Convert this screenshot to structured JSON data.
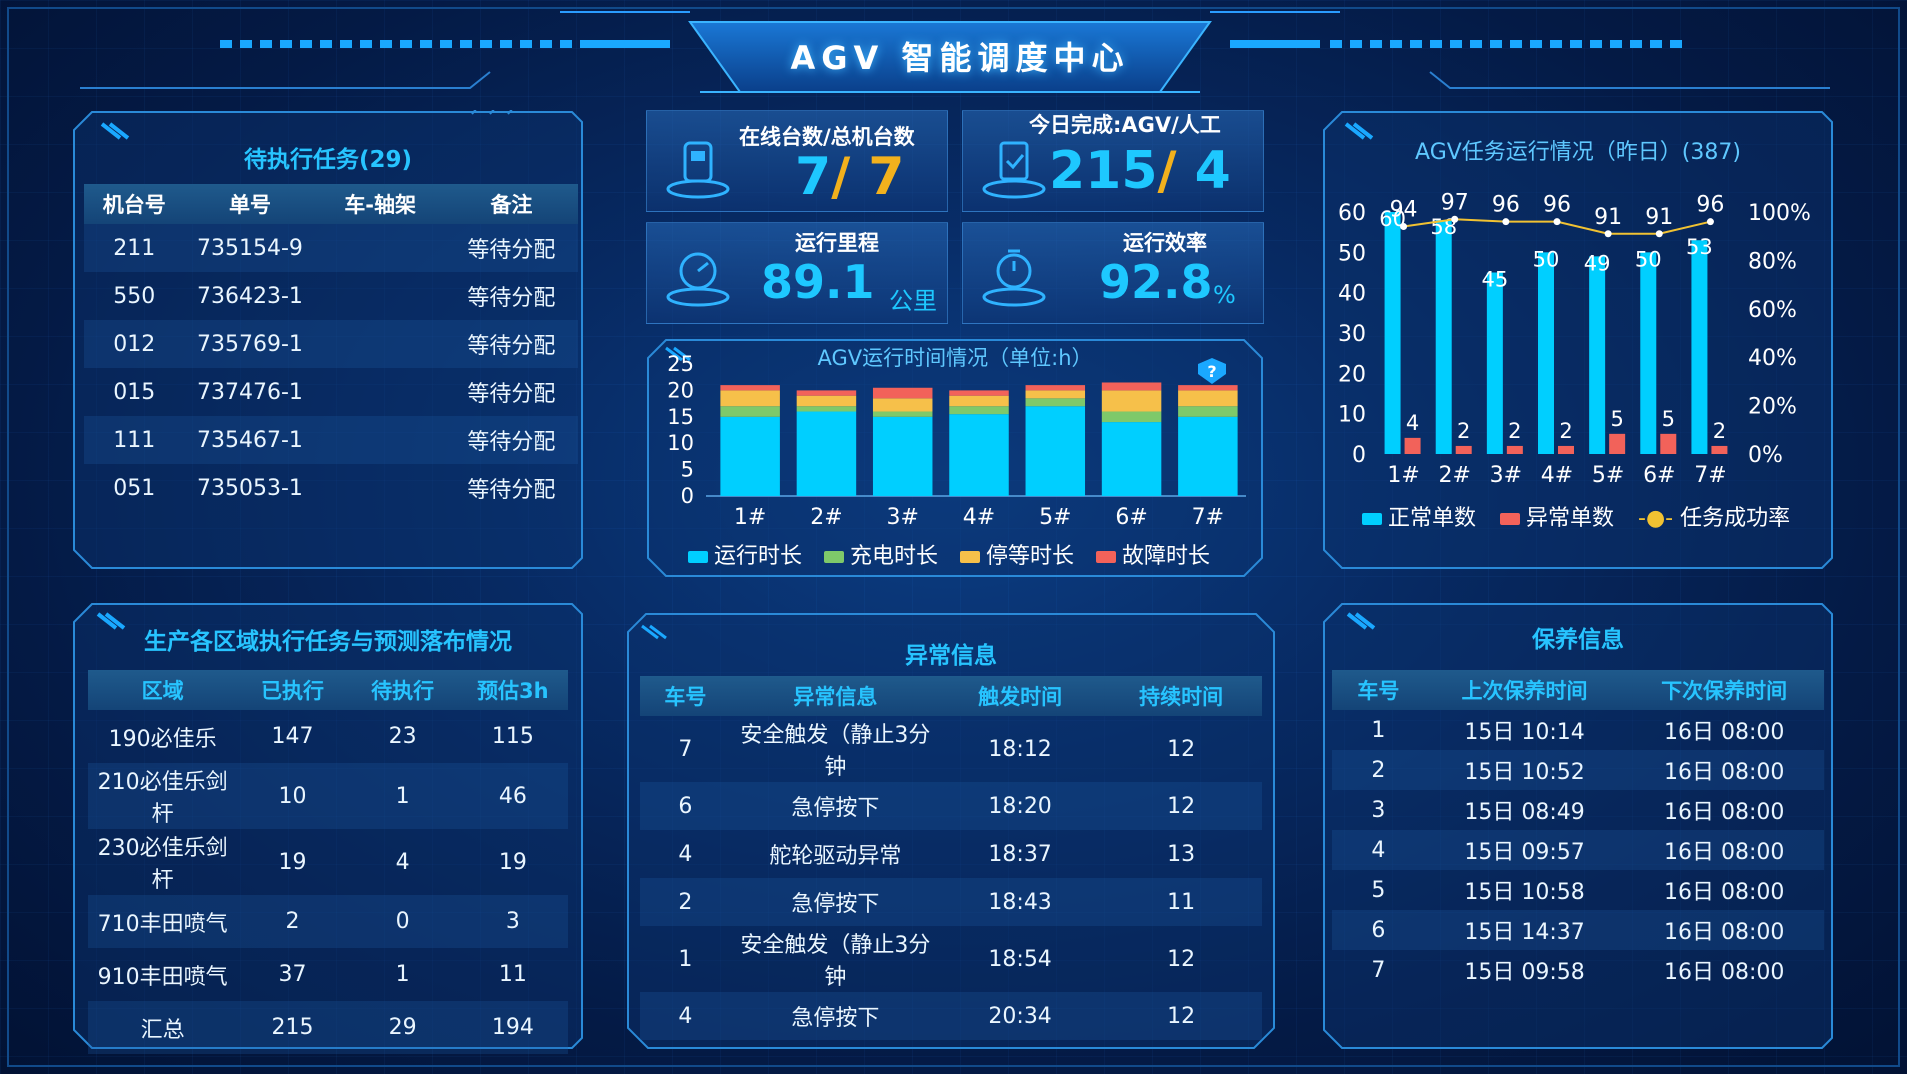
{
  "header": {
    "title": "AGV 智能调度中心"
  },
  "pending_tasks": {
    "title": "待执行任务(29)",
    "columns": [
      "机台号",
      "单号",
      "车-轴架",
      "备注"
    ],
    "rows": [
      {
        "machine": "211",
        "order": "735154-9",
        "axle": "",
        "note": "等待分配"
      },
      {
        "machine": "550",
        "order": "736423-1",
        "axle": "",
        "note": "等待分配"
      },
      {
        "machine": "012",
        "order": "735769-1",
        "axle": "",
        "note": "等待分配"
      },
      {
        "machine": "015",
        "order": "737476-1",
        "axle": "",
        "note": "等待分配"
      },
      {
        "machine": "111",
        "order": "735467-1",
        "axle": "",
        "note": "等待分配"
      },
      {
        "machine": "051",
        "order": "735053-1",
        "axle": "",
        "note": "等待分配"
      }
    ]
  },
  "kpis": {
    "online": {
      "label": "在线台数/总机台数",
      "value_a": "7",
      "slash": "/",
      "value_b": " 7"
    },
    "done": {
      "label": "今日完成:AGV/人工",
      "value_a": "215",
      "slash": "/",
      "value_b": " 4"
    },
    "mileage": {
      "label": "运行里程",
      "value": "89.1",
      "unit": "公里"
    },
    "efficiency": {
      "label": "运行效率",
      "value": "92.8",
      "unit": "%"
    }
  },
  "run_time_chart": {
    "title": "AGV运行时间情况（单位:h）",
    "legend": [
      "运行时长",
      "充电时长",
      "停等时长",
      "故障时长"
    ],
    "colors": [
      "#00cfff",
      "#7ec96a",
      "#f6c04a",
      "#f2625a"
    ]
  },
  "task_chart": {
    "title": "AGV任务运行情况（昨日）(387)",
    "legend": [
      "正常单数",
      "异常单数",
      "任务成功率"
    ],
    "colors": {
      "normal": "#00cfff",
      "abnormal": "#f2625a",
      "rate": "#f1c232"
    }
  },
  "chart_data": [
    {
      "type": "bar",
      "title": "AGV运行时间情况（单位:h）",
      "categories": [
        "1#",
        "2#",
        "3#",
        "4#",
        "5#",
        "6#",
        "7#"
      ],
      "ylim": [
        0,
        25
      ],
      "yticks": [
        "0",
        "5",
        "10",
        "15",
        "20",
        "25"
      ],
      "stacked": true,
      "series": [
        {
          "name": "运行时长",
          "values": [
            15,
            16,
            15,
            15.5,
            17,
            14,
            15
          ]
        },
        {
          "name": "充电时长",
          "values": [
            2,
            1,
            1,
            1.5,
            1.5,
            2,
            2
          ]
        },
        {
          "name": "停等时长",
          "values": [
            3,
            2,
            2.5,
            2,
            1.5,
            4,
            3
          ]
        },
        {
          "name": "故障时长",
          "values": [
            1,
            1,
            2,
            1,
            1,
            1.5,
            1
          ]
        }
      ]
    },
    {
      "type": "bar",
      "title": "AGV任务运行情况（昨日）(387)",
      "categories": [
        "1#",
        "2#",
        "3#",
        "4#",
        "5#",
        "6#",
        "7#"
      ],
      "ylim": [
        0,
        60
      ],
      "yticks": [
        "0",
        "10",
        "20",
        "30",
        "40",
        "50",
        "60"
      ],
      "y2ticks": [
        "0%",
        "20%",
        "40%",
        "60%",
        "80%",
        "100%"
      ],
      "series": [
        {
          "name": "正常单数",
          "values": [
            60,
            58,
            45,
            50,
            49,
            50,
            53
          ]
        },
        {
          "name": "异常单数",
          "values": [
            4,
            2,
            2,
            2,
            5,
            5,
            2
          ]
        },
        {
          "name": "任务成功率",
          "values": [
            94,
            97,
            96,
            96,
            91,
            91,
            96
          ]
        }
      ]
    }
  ],
  "region_tasks": {
    "title": "生产各区域执行任务与预测落布情况",
    "columns": [
      "区域",
      "已执行",
      "待执行",
      "预估3h"
    ],
    "rows": [
      {
        "area": "190必佳乐",
        "done": "147",
        "pending": "23",
        "est": "115"
      },
      {
        "area": "210必佳乐剑杆",
        "done": "10",
        "pending": "1",
        "est": "46"
      },
      {
        "area": "230必佳乐剑杆",
        "done": "19",
        "pending": "4",
        "est": "19"
      },
      {
        "area": "710丰田喷气",
        "done": "2",
        "pending": "0",
        "est": "3"
      },
      {
        "area": "910丰田喷气",
        "done": "37",
        "pending": "1",
        "est": "11"
      },
      {
        "area": "汇总",
        "done": "215",
        "pending": "29",
        "est": "194"
      }
    ]
  },
  "anomalies": {
    "title": "异常信息",
    "columns": [
      "车号",
      "异常信息",
      "触发时间",
      "持续时间"
    ],
    "rows": [
      {
        "car": "7",
        "info": "安全触发（静止3分钟",
        "time": "18:12",
        "dur": "12"
      },
      {
        "car": "6",
        "info": "急停按下",
        "time": "18:20",
        "dur": "12"
      },
      {
        "car": "4",
        "info": "舵轮驱动异常",
        "time": "18:37",
        "dur": "13"
      },
      {
        "car": "2",
        "info": "急停按下",
        "time": "18:43",
        "dur": "11"
      },
      {
        "car": "1",
        "info": "安全触发（静止3分钟",
        "time": "18:54",
        "dur": "12"
      },
      {
        "car": "4",
        "info": "急停按下",
        "time": "20:34",
        "dur": "12"
      }
    ]
  },
  "maintenance": {
    "title": "保养信息",
    "columns": [
      "车号",
      "上次保养时间",
      "下次保养时间"
    ],
    "rows": [
      {
        "car": "1",
        "last": "15日 10:14",
        "next": "16日 08:00"
      },
      {
        "car": "2",
        "last": "15日 10:52",
        "next": "16日 08:00"
      },
      {
        "car": "3",
        "last": "15日 08:49",
        "next": "16日 08:00"
      },
      {
        "car": "4",
        "last": "15日 09:57",
        "next": "16日 08:00"
      },
      {
        "car": "5",
        "last": "15日 10:58",
        "next": "16日 08:00"
      },
      {
        "car": "6",
        "last": "15日 14:37",
        "next": "16日 08:00"
      },
      {
        "car": "7",
        "last": "15日 09:58",
        "next": "16日 08:00"
      }
    ]
  }
}
